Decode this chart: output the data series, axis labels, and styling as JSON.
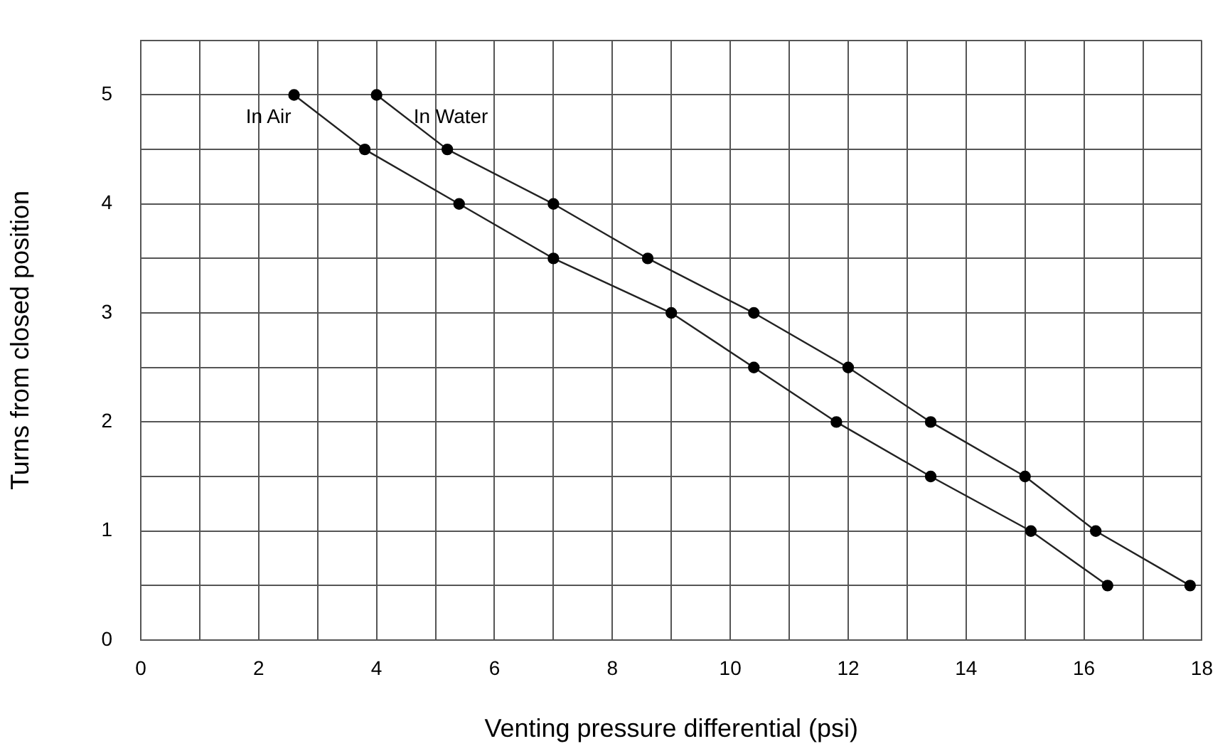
{
  "chart_data": {
    "type": "line",
    "xlabel": "Venting pressure differential (psi)",
    "ylabel": "Turns from closed position",
    "xlim": [
      0,
      18
    ],
    "ylim": [
      0,
      5.5
    ],
    "xticks": [
      0,
      {
        "value": 1,
        "label": null
      },
      2,
      {
        "value": 3,
        "label": null
      },
      4,
      {
        "value": 5,
        "label": null
      },
      6,
      {
        "value": 7,
        "label": null
      },
      8,
      {
        "value": 9,
        "label": null
      },
      10,
      {
        "value": 11,
        "label": null
      },
      12,
      {
        "value": 13,
        "label": null
      },
      14,
      {
        "value": 15,
        "label": null
      },
      16,
      {
        "value": 17,
        "label": null
      },
      18
    ],
    "yticks": [
      0,
      {
        "value": 0.5,
        "label": null
      },
      1,
      {
        "value": 1.5,
        "label": null
      },
      2,
      {
        "value": 2.5,
        "label": null
      },
      3,
      {
        "value": 3.5,
        "label": null
      },
      4,
      {
        "value": 4.5,
        "label": null
      },
      5,
      {
        "value": 5.5,
        "label": null
      }
    ],
    "grid": true,
    "legend": false,
    "marker": "circle",
    "line_style": "solid",
    "series": [
      {
        "name": "In Air",
        "color": "#222222",
        "x": [
          2.6,
          3.8,
          5.4,
          7,
          9,
          10.4,
          11.8,
          13.4,
          15.1,
          16.4
        ],
        "values": [
          5,
          4.5,
          4,
          3.5,
          3,
          2.5,
          2,
          1.5,
          1,
          0.5
        ]
      },
      {
        "name": "In Water",
        "color": "#222222",
        "x": [
          4,
          5.2,
          7,
          8.6,
          10.4,
          12,
          13.4,
          15,
          16.2,
          17.8
        ],
        "values": [
          5,
          4.5,
          4,
          3.5,
          3,
          2.5,
          2,
          1.5,
          1,
          0.5
        ]
      }
    ]
  }
}
